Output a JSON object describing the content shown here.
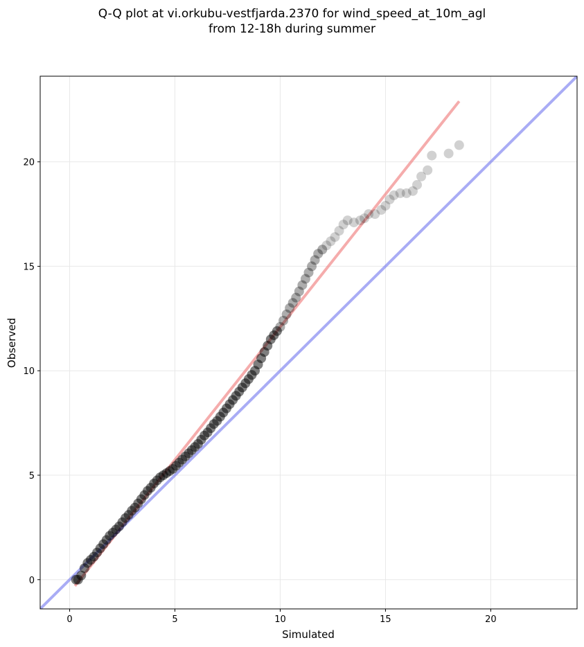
{
  "chart_data": {
    "type": "scatter",
    "title_lines": [
      "Q-Q plot at vi.orkubu-vestfjarda.2370 for wind_speed_at_10m_agl",
      "from 12-18h during summer"
    ],
    "xlabel": "Simulated",
    "ylabel": "Observed",
    "xlim": [
      -1.4,
      24.1
    ],
    "ylim": [
      -1.4,
      24.1
    ],
    "x_ticks": [
      0,
      5,
      10,
      15,
      20
    ],
    "y_ticks": [
      0,
      5,
      10,
      15,
      20
    ],
    "grid": true,
    "colors": {
      "points": "#000000",
      "fit_line": "#f08080",
      "identity_line": "#7b7ff0",
      "grid": "#e8e8e8"
    },
    "series": [
      {
        "kind": "points",
        "x": [
          0.3,
          0.4,
          0.55,
          0.7,
          0.85,
          1.0,
          1.15,
          1.3,
          1.45,
          1.6,
          1.75,
          1.9,
          2.05,
          2.2,
          2.35,
          2.5,
          2.65,
          2.8,
          2.95,
          3.1,
          3.25,
          3.4,
          3.55,
          3.7,
          3.85,
          4.0,
          4.15,
          4.3,
          4.45,
          4.6,
          4.75,
          4.9,
          5.05,
          5.2,
          5.35,
          5.5,
          5.65,
          5.8,
          5.95,
          6.1,
          6.25,
          6.4,
          6.55,
          6.7,
          6.85,
          7.0,
          7.15,
          7.3,
          7.45,
          7.6,
          7.75,
          7.9,
          8.05,
          8.2,
          8.35,
          8.5,
          8.65,
          8.8,
          8.95,
          9.1,
          9.25,
          9.4,
          9.55,
          9.7,
          9.85,
          10.0,
          10.15,
          10.3,
          10.45,
          10.6,
          10.75,
          10.9,
          11.05,
          11.2,
          11.35,
          11.5,
          11.65,
          11.8,
          12.0,
          12.2,
          12.4,
          12.6,
          12.8,
          13.0,
          13.2,
          13.5,
          13.8,
          14.0,
          14.2,
          14.5,
          14.8,
          15.0,
          15.2,
          15.4,
          15.7,
          16.0,
          16.3,
          16.5,
          16.7,
          17.0,
          17.2,
          18.0,
          18.5
        ],
        "y": [
          0.0,
          0.0,
          0.2,
          0.55,
          0.8,
          0.95,
          1.1,
          1.3,
          1.5,
          1.7,
          1.9,
          2.1,
          2.25,
          2.4,
          2.55,
          2.75,
          2.95,
          3.1,
          3.3,
          3.45,
          3.65,
          3.85,
          4.05,
          4.25,
          4.4,
          4.6,
          4.75,
          4.9,
          5.0,
          5.1,
          5.2,
          5.3,
          5.45,
          5.6,
          5.75,
          5.9,
          6.05,
          6.2,
          6.35,
          6.5,
          6.7,
          6.9,
          7.05,
          7.25,
          7.45,
          7.6,
          7.8,
          8.0,
          8.2,
          8.4,
          8.6,
          8.8,
          9.0,
          9.2,
          9.4,
          9.6,
          9.8,
          10.0,
          10.3,
          10.6,
          10.9,
          11.2,
          11.5,
          11.7,
          11.9,
          12.1,
          12.4,
          12.7,
          13.0,
          13.25,
          13.5,
          13.8,
          14.1,
          14.4,
          14.7,
          15.0,
          15.3,
          15.6,
          15.8,
          16.0,
          16.2,
          16.4,
          16.7,
          17.0,
          17.2,
          17.1,
          17.2,
          17.3,
          17.5,
          17.5,
          17.7,
          17.9,
          18.2,
          18.4,
          18.5,
          18.5,
          18.6,
          18.9,
          19.3,
          19.6,
          20.3,
          20.4,
          20.8
        ]
      },
      {
        "kind": "fit_line",
        "x": [
          0.25,
          18.5
        ],
        "y": [
          -0.3,
          22.9
        ]
      },
      {
        "kind": "identity_line",
        "x": [
          -1.4,
          24.1
        ],
        "y": [
          -1.4,
          24.1
        ]
      }
    ]
  }
}
